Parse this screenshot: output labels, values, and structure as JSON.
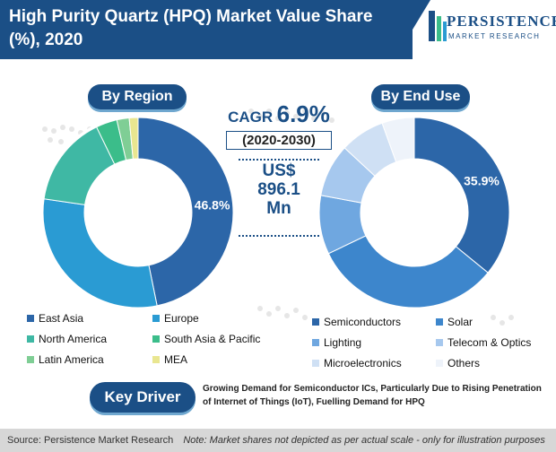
{
  "header": {
    "title": "High Purity Quartz (HPQ) Market Value Share (%), 2020",
    "logo_name": "PERSISTENCE",
    "logo_sub": "MARKET RESEARCH"
  },
  "center": {
    "cagr_label": "CAGR",
    "cagr_value": "6.9%",
    "cagr_period": "(2020-2030)",
    "value_line1": "US$",
    "value_line2": "896.1",
    "value_line3": "Mn"
  },
  "key_driver": {
    "label": "Key Driver",
    "text": "Growing Demand for Semiconductor ICs, Particularly Due to Rising Penetration of Internet of Things (IoT), Fuelling Demand for HPQ"
  },
  "footer": {
    "source": "Source: Persistence Market Research",
    "note": "Note: Market shares not depicted as per actual scale - only for illustration purposes"
  },
  "colors": {
    "brand": "#1b4f86",
    "accent": "#6fa7cf"
  },
  "chart_data": [
    {
      "type": "pie",
      "variant": "donut",
      "title": "By Region",
      "categories": [
        "East Asia",
        "Europe",
        "North America",
        "South Asia & Pacific",
        "Latin America",
        "MEA"
      ],
      "values": [
        46.8,
        30.5,
        15.5,
        3.6,
        2.1,
        1.5
      ],
      "labels_shown": [
        "46.8%",
        "",
        "",
        "",
        "",
        ""
      ],
      "colors": [
        "#2c66a8",
        "#2a9bd3",
        "#3fb8a4",
        "#3bbd8a",
        "#7fce95",
        "#e9e690"
      ],
      "legend_placement": "bottom"
    },
    {
      "type": "pie",
      "variant": "donut",
      "title": "By End Use",
      "categories": [
        "Semiconductors",
        "Solar",
        "Lighting",
        "Telecom & Optics",
        "Microelectronics",
        "Others"
      ],
      "values": [
        35.9,
        32.0,
        10.0,
        9.0,
        7.6,
        5.5
      ],
      "labels_shown": [
        "35.9%",
        "",
        "",
        "",
        "",
        ""
      ],
      "colors": [
        "#2c66a8",
        "#3d86cc",
        "#6fa7e0",
        "#a6c8ee",
        "#cfe0f4",
        "#eef3fa"
      ],
      "legend_placement": "bottom"
    }
  ]
}
